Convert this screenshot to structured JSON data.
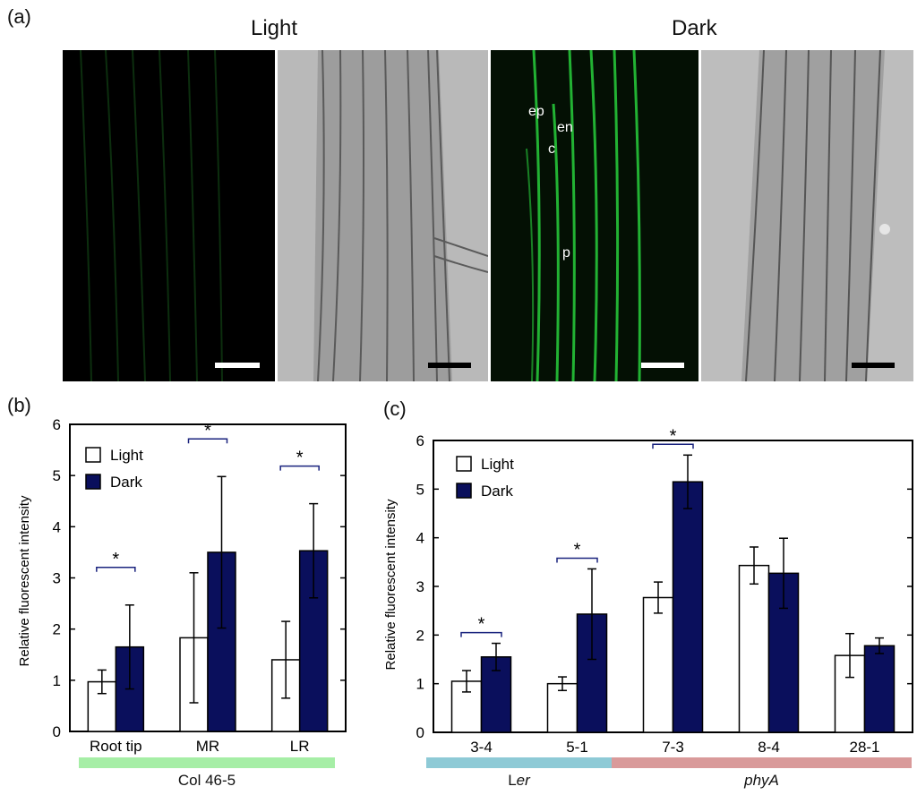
{
  "panel_labels": {
    "a": "(a)",
    "b": "(b)",
    "c": "(c)"
  },
  "conditions": {
    "light": "Light",
    "dark": "Dark"
  },
  "cell_labels": [
    "ep",
    "en",
    "c",
    "p"
  ],
  "colors": {
    "light_bar": "#ffffff",
    "dark_bar": "#0a0f5c",
    "col_strip": "#a6eea6",
    "ler_strip": "#8ecad6",
    "phya_strip": "#d99a9a",
    "fluor_green": "#22b233"
  },
  "chart_data": [
    {
      "type": "bar",
      "panel": "(b)",
      "ylabel": "Relative fluorescent intensity",
      "ylim": [
        0,
        6
      ],
      "yticks": [
        0,
        1,
        2,
        3,
        4,
        5,
        6
      ],
      "categories": [
        "Root tip",
        "MR",
        "LR"
      ],
      "series": [
        {
          "name": "Light",
          "values": [
            0.97,
            1.83,
            1.4
          ],
          "errors": [
            0.23,
            1.27,
            0.75
          ]
        },
        {
          "name": "Dark",
          "values": [
            1.65,
            3.5,
            3.53
          ],
          "errors": [
            0.82,
            1.48,
            0.92
          ]
        }
      ],
      "significance": [
        "*",
        "*",
        "*"
      ],
      "legend": "top-left",
      "group_label": "Col 46-5"
    },
    {
      "type": "bar",
      "panel": "(c)",
      "ylabel": "Relative fluorescent intensity",
      "ylim": [
        0,
        6
      ],
      "yticks": [
        0,
        1,
        2,
        3,
        4,
        5,
        6
      ],
      "categories": [
        "3-4",
        "5-1",
        "7-3",
        "8-4",
        "28-1"
      ],
      "series": [
        {
          "name": "Light",
          "values": [
            1.05,
            1.0,
            2.77,
            3.43,
            1.58
          ],
          "errors": [
            0.22,
            0.14,
            0.32,
            0.38,
            0.45
          ]
        },
        {
          "name": "Dark",
          "values": [
            1.55,
            2.43,
            5.15,
            3.27,
            1.78
          ],
          "errors": [
            0.28,
            0.93,
            0.55,
            0.72,
            0.16
          ]
        }
      ],
      "significance": [
        "*",
        "*",
        "*",
        "",
        ""
      ],
      "legend": "top-left",
      "group_labels": [
        {
          "text": "Ler",
          "categories": [
            "3-4",
            "5-1"
          ]
        },
        {
          "text": "phyA",
          "categories": [
            "7-3",
            "8-4",
            "28-1"
          ]
        }
      ]
    }
  ]
}
